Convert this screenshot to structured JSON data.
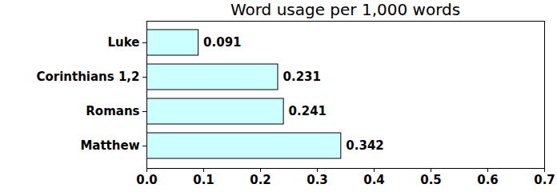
{
  "chart_data": {
    "type": "bar",
    "title": "Word usage per 1,000 words",
    "orientation": "horizontal",
    "categories": [
      "Luke",
      "Corinthians 1,2",
      "Romans",
      "Matthew"
    ],
    "values": [
      0.091,
      0.231,
      0.241,
      0.342
    ],
    "color": "#ccffff",
    "xlim": [
      0,
      0.7
    ],
    "xticks": [
      {
        "value": 0,
        "label": "0.0"
      },
      0.1,
      0.2,
      0.3,
      0.4,
      0.5,
      0.6,
      0.7
    ],
    "data_labels": true,
    "grid": false
  }
}
